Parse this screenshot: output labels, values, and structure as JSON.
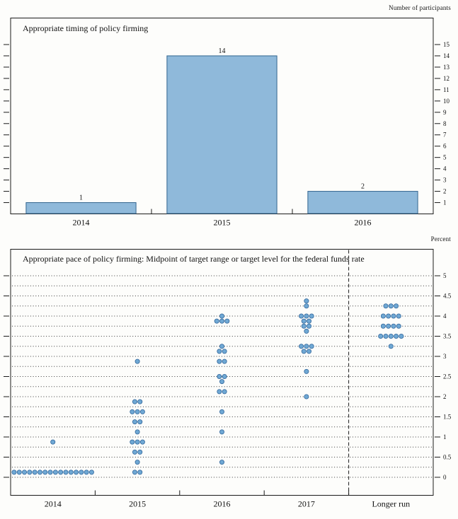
{
  "chart_data": [
    {
      "type": "bar",
      "title": "Appropriate timing of policy firming",
      "unit_label": "Number of participants",
      "categories": [
        "2014",
        "2015",
        "2016"
      ],
      "values": [
        1,
        14,
        2
      ],
      "ylim": [
        0,
        15
      ],
      "yticks": [
        1,
        2,
        3,
        4,
        5,
        6,
        7,
        8,
        9,
        10,
        11,
        12,
        13,
        14,
        15
      ],
      "ytick_side": "right",
      "grid": false,
      "bar_fill": "#8fb9da",
      "bar_stroke": "#33658f",
      "frame_color": "#1a1a1a"
    },
    {
      "type": "scatter",
      "title": "Appropriate pace of policy firming: Midpoint of target range or target level for the federal funds rate",
      "unit_label": "Percent",
      "categories": [
        "2014",
        "2015",
        "2016",
        "2017",
        "Longer run"
      ],
      "ylim": [
        0,
        5
      ],
      "yticks": [
        0,
        0.5,
        1,
        1.5,
        2,
        2.5,
        3,
        3.5,
        4,
        4.5,
        5
      ],
      "ytick_labels": [
        "0",
        "0.5",
        "1",
        "1.5",
        "2",
        "2.5",
        "3",
        "3.5",
        "4",
        "4.5",
        "5"
      ],
      "ytick_side": "right",
      "gridline_step": 0.25,
      "grid_style": "dotted",
      "separator_after_category": "2017",
      "dot_fill": "#6fa8d4",
      "dot_stroke": "#34689c",
      "frame_color": "#1a1a1a",
      "series": [
        {
          "category": "2014",
          "dots": [
            {
              "value": 0.125,
              "count": 16
            },
            {
              "value": 0.875,
              "count": 1
            }
          ]
        },
        {
          "category": "2015",
          "dots": [
            {
              "value": 0.125,
              "count": 2
            },
            {
              "value": 0.375,
              "count": 1
            },
            {
              "value": 0.625,
              "count": 2
            },
            {
              "value": 0.875,
              "count": 3
            },
            {
              "value": 1.125,
              "count": 1
            },
            {
              "value": 1.375,
              "count": 2
            },
            {
              "value": 1.625,
              "count": 3
            },
            {
              "value": 1.875,
              "count": 2
            },
            {
              "value": 2.875,
              "count": 1
            }
          ]
        },
        {
          "category": "2016",
          "dots": [
            {
              "value": 0.375,
              "count": 1
            },
            {
              "value": 1.125,
              "count": 1
            },
            {
              "value": 1.625,
              "count": 1
            },
            {
              "value": 2.125,
              "count": 2
            },
            {
              "value": 2.375,
              "count": 1
            },
            {
              "value": 2.5,
              "count": 2
            },
            {
              "value": 2.875,
              "count": 2
            },
            {
              "value": 3.125,
              "count": 2
            },
            {
              "value": 3.25,
              "count": 1
            },
            {
              "value": 3.875,
              "count": 3
            },
            {
              "value": 4.0,
              "count": 1
            }
          ]
        },
        {
          "category": "2017",
          "dots": [
            {
              "value": 2.0,
              "count": 1
            },
            {
              "value": 2.625,
              "count": 1
            },
            {
              "value": 3.125,
              "count": 2
            },
            {
              "value": 3.25,
              "count": 3
            },
            {
              "value": 3.625,
              "count": 1
            },
            {
              "value": 3.75,
              "count": 2
            },
            {
              "value": 3.875,
              "count": 2
            },
            {
              "value": 4.0,
              "count": 3
            },
            {
              "value": 4.25,
              "count": 1
            },
            {
              "value": 4.375,
              "count": 1
            }
          ]
        },
        {
          "category": "Longer run",
          "dots": [
            {
              "value": 3.25,
              "count": 1
            },
            {
              "value": 3.5,
              "count": 5
            },
            {
              "value": 3.75,
              "count": 4
            },
            {
              "value": 4.0,
              "count": 4
            },
            {
              "value": 4.25,
              "count": 3
            }
          ]
        }
      ]
    }
  ]
}
